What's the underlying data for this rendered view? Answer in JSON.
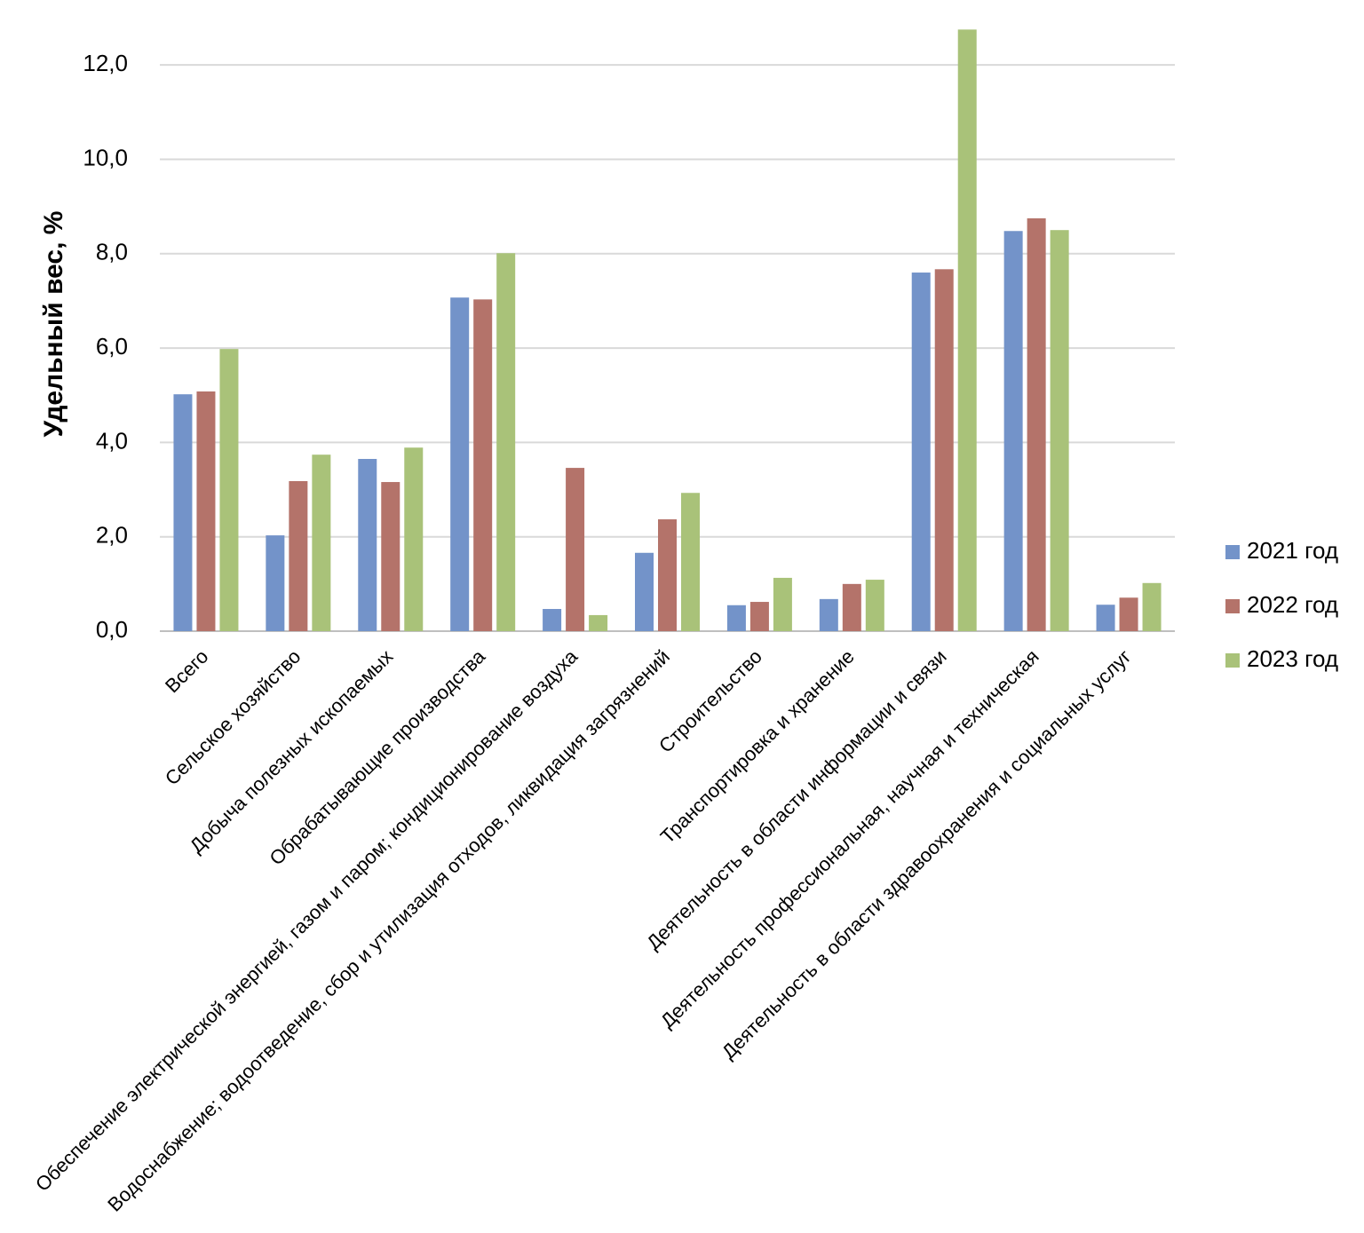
{
  "chart_data": {
    "type": "bar",
    "y_label": "Удельный вес, %",
    "categories": [
      "Всего",
      "Сельское хозяйство",
      "Добыча полезных ископаемых",
      "Обрабатывающие производства",
      "Обеспечение электрической энергией, газом и паром; кондиционирование воздуха",
      "Водоснабжение; водоотведение, сбор и утилизация отходов, ликвидация загрязнений",
      "Строительство",
      "Транспортировка и хранение",
      "Деятельность в области информации и связи",
      "Деятельность профессиональная, научная и техническая",
      "Деятельность в области здравоохранения и социальных услуг"
    ],
    "series": [
      {
        "name": "2021 год",
        "color": "#7393c9",
        "values": [
          5.02,
          2.03,
          3.65,
          7.07,
          0.47,
          1.66,
          0.55,
          0.68,
          7.6,
          8.48,
          0.56
        ]
      },
      {
        "name": "2022 год",
        "color": "#b4736a",
        "values": [
          5.08,
          3.18,
          3.16,
          7.03,
          3.46,
          2.37,
          0.62,
          1.0,
          7.67,
          8.75,
          0.71
        ]
      },
      {
        "name": "2023 год",
        "color": "#a9c279",
        "values": [
          5.98,
          3.74,
          3.89,
          8.01,
          0.34,
          2.93,
          1.13,
          1.09,
          12.75,
          8.5,
          1.02
        ]
      }
    ],
    "ylim": [
      0,
      13
    ],
    "yticks": [
      {
        "value": 0,
        "label": "0,0"
      },
      {
        "value": 2,
        "label": "2,0"
      },
      {
        "value": 4,
        "label": "4,0"
      },
      {
        "value": 6,
        "label": "6,0"
      },
      {
        "value": 8,
        "label": "8,0"
      },
      {
        "value": 10,
        "label": "10,0"
      },
      {
        "value": 12,
        "label": "12,0"
      }
    ],
    "grid": true,
    "legend": "right"
  }
}
